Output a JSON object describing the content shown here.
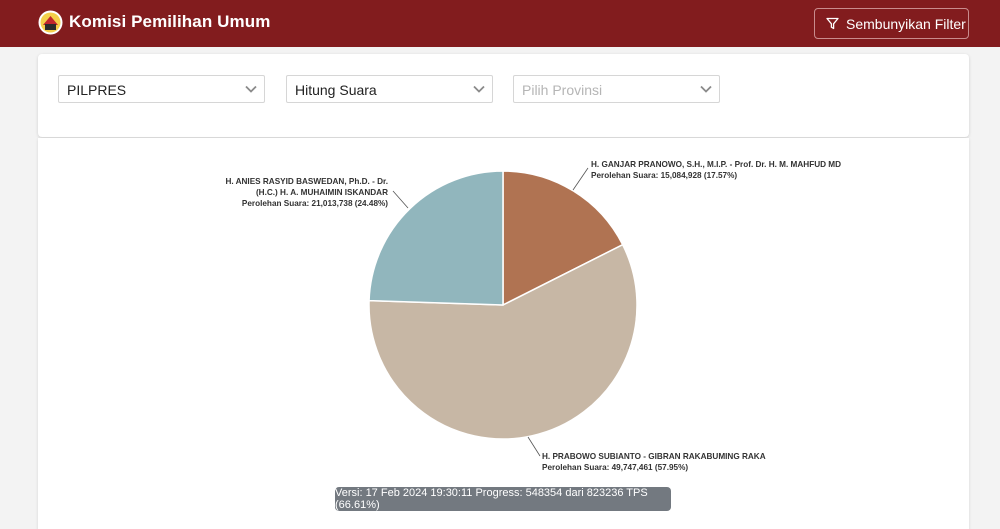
{
  "header": {
    "title": "Komisi Pemilihan Umum",
    "filter_button_label": "Sembunyikan Filter"
  },
  "filters": {
    "election_type": "PILPRES",
    "count_type": "Hitung Suara",
    "province_placeholder": "Pilih Provinsi"
  },
  "chart_data": {
    "type": "pie",
    "slices": [
      {
        "name_lines": [
          "H. GANJAR PRANOWO, S.H., M.I.P. - Prof. Dr. H. M. MAHFUD MD"
        ],
        "vote_label": "Perolehan Suara: 15,084,928 (17.57%)",
        "votes": 15084928,
        "percent": 17.57,
        "color": "#b07352"
      },
      {
        "name_lines": [
          "H. PRABOWO SUBIANTO - GIBRAN RAKABUMING RAKA"
        ],
        "vote_label": "Perolehan Suara: 49,747,461 (57.95%)",
        "votes": 49747461,
        "percent": 57.95,
        "color": "#c7b7a5"
      },
      {
        "name_lines": [
          "H. ANIES RASYID BASWEDAN, Ph.D. - Dr.",
          "(H.C.) H. A. MUHAIMIN ISKANDAR"
        ],
        "vote_label": "Perolehan Suara: 21,013,738 (24.48%)",
        "votes": 21013738,
        "percent": 24.48,
        "color": "#91b6bd"
      }
    ]
  },
  "footer": {
    "version_text": "Versi: 17 Feb 2024 19:30:11 Progress: 548354 dari 823236 TPS (66.61%)"
  }
}
